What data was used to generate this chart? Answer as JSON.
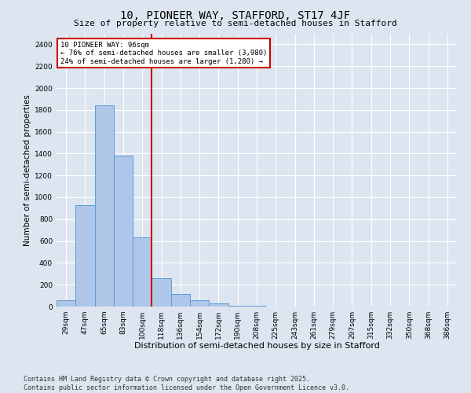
{
  "title": "10, PIONEER WAY, STAFFORD, ST17 4JF",
  "subtitle": "Size of property relative to semi-detached houses in Stafford",
  "xlabel": "Distribution of semi-detached houses by size in Stafford",
  "ylabel": "Number of semi-detached properties",
  "bar_labels": [
    "29sqm",
    "47sqm",
    "65sqm",
    "83sqm",
    "100sqm",
    "118sqm",
    "136sqm",
    "154sqm",
    "172sqm",
    "190sqm",
    "208sqm",
    "225sqm",
    "243sqm",
    "261sqm",
    "279sqm",
    "297sqm",
    "315sqm",
    "332sqm",
    "350sqm",
    "368sqm",
    "386sqm"
  ],
  "bar_values": [
    60,
    930,
    1840,
    1380,
    630,
    260,
    115,
    60,
    30,
    10,
    5,
    2,
    1,
    1,
    0,
    0,
    0,
    0,
    0,
    0,
    1
  ],
  "bar_color": "#aec6e8",
  "bar_edge_color": "#5b9bd5",
  "vline_x": 4,
  "annotation_text": "10 PIONEER WAY: 96sqm\n← 76% of semi-detached houses are smaller (3,980)\n24% of semi-detached houses are larger (1,280) →",
  "annotation_box_color": "#ffffff",
  "annotation_box_edge": "#cc0000",
  "vline_color": "#cc0000",
  "ylim": [
    0,
    2500
  ],
  "yticks": [
    0,
    200,
    400,
    600,
    800,
    1000,
    1200,
    1400,
    1600,
    1800,
    2000,
    2200,
    2400
  ],
  "bg_color": "#dde6f0",
  "plot_bg_color": "#dde6f0",
  "footer": "Contains HM Land Registry data © Crown copyright and database right 2025.\nContains public sector information licensed under the Open Government Licence v3.0.",
  "title_fontsize": 10,
  "subtitle_fontsize": 8,
  "xlabel_fontsize": 8,
  "ylabel_fontsize": 7.5,
  "tick_fontsize": 6.5,
  "footer_fontsize": 6
}
